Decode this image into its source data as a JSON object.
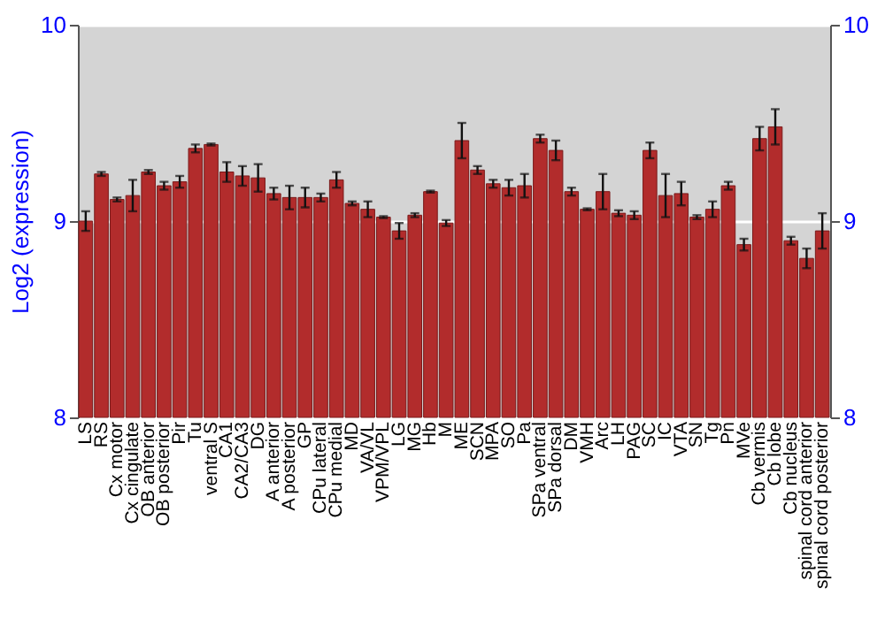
{
  "chart_data": {
    "type": "bar",
    "ylabel": "Log2 (expression)",
    "categories": [
      "LS",
      "RS",
      "Cx motor",
      "Cx cingulate",
      "OB anterior",
      "OB posterior",
      "Pir",
      "Tu",
      "ventral S",
      "CA1",
      "CA2/CA3",
      "DG",
      "A anterior",
      "A posterior",
      "GP",
      "CPu lateral",
      "CPu medial",
      "MD",
      "VA/VL",
      "VPM/VPL",
      "LG",
      "MG",
      "Hb",
      "M",
      "ME",
      "SCN",
      "MPA",
      "SO",
      "Pa",
      "SPa ventral",
      "SPa dorsal",
      "DM",
      "VMH",
      "Arc",
      "LH",
      "PAG",
      "SC",
      "IC",
      "VTA",
      "SN",
      "Tg",
      "Pn",
      "MVe",
      "Cb vermis",
      "Cb lobe",
      "Cb nucleus",
      "spinal cord anterior",
      "spinal cord posterior"
    ],
    "values": [
      9.0,
      9.24,
      9.11,
      9.13,
      9.25,
      9.18,
      9.2,
      9.37,
      9.39,
      9.25,
      9.23,
      9.22,
      9.14,
      9.12,
      9.12,
      9.12,
      9.21,
      9.09,
      9.06,
      9.02,
      8.95,
      9.03,
      9.15,
      8.99,
      9.41,
      9.26,
      9.19,
      9.17,
      9.18,
      9.42,
      9.36,
      9.15,
      9.06,
      9.15,
      9.04,
      9.03,
      9.36,
      9.13,
      9.14,
      9.02,
      9.06,
      9.18,
      8.88,
      9.42,
      9.48,
      8.9,
      8.81,
      8.95
    ],
    "errors": [
      0.05,
      0.01,
      0.01,
      0.08,
      0.01,
      0.02,
      0.03,
      0.02,
      0.005,
      0.05,
      0.05,
      0.07,
      0.03,
      0.06,
      0.05,
      0.02,
      0.04,
      0.01,
      0.04,
      0.005,
      0.04,
      0.01,
      0.005,
      0.015,
      0.09,
      0.02,
      0.02,
      0.04,
      0.06,
      0.02,
      0.05,
      0.02,
      0.005,
      0.09,
      0.015,
      0.02,
      0.04,
      0.11,
      0.06,
      0.01,
      0.04,
      0.02,
      0.03,
      0.06,
      0.09,
      0.02,
      0.05,
      0.09
    ],
    "color": "#b22c2c",
    "ylim": [
      8,
      10
    ],
    "yticks": [
      8,
      9,
      10
    ],
    "y2lim": [
      8,
      10
    ],
    "y2ticks": [
      8,
      9,
      10
    ],
    "grid": "y"
  }
}
